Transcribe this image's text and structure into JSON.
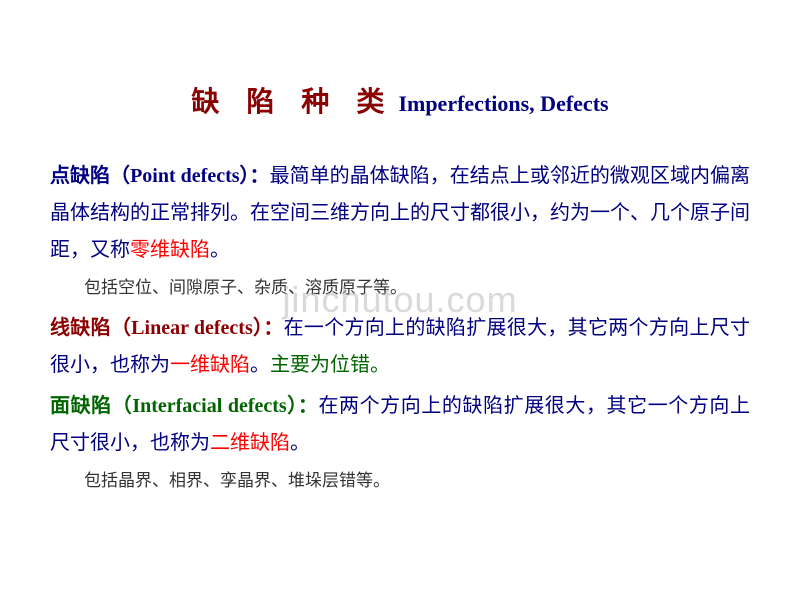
{
  "watermark": "jinchutou.com",
  "title": {
    "cn": "缺 陷 种 类",
    "en": "Imperfections, Defects",
    "cn_color": "#8b0000",
    "en_color": "#000080",
    "cn_fontsize": 28,
    "en_fontsize": 22
  },
  "sections": {
    "point": {
      "heading_cn": "点缺陷（",
      "heading_en": "Point defects",
      "heading_tail": "）：",
      "body1": "最简单的晶体缺陷，在结点上或邻近的微观区域内偏离晶体结构的正常排列。在空间三维方向上的尺寸都很小，约为一个、几个原子间距，又称",
      "highlight": "零维缺陷",
      "period": "。",
      "sub": "包括空位、间隙原子、杂质、溶质原子等。"
    },
    "linear": {
      "heading_cn": "线缺陷（",
      "heading_en": "Linear defects",
      "heading_tail": "）：",
      "body1": "在一个方向上的缺陷扩展很大，其它两个方向上尺寸很小，也称为",
      "highlight": "一维缺陷",
      "period": "。",
      "tail": "主要为位错。"
    },
    "interfacial": {
      "heading_cn": "面缺陷（",
      "heading_en": "Interfacial defects",
      "heading_tail": "）：",
      "body1": "在两个方向上的缺陷扩展很大，其它一个方向上尺寸很小，也称为",
      "highlight": "二维缺陷",
      "period": "。",
      "sub": "包括晶界、相界、孪晶界、堆垛层错等。"
    }
  },
  "colors": {
    "navy": "#000080",
    "darkred": "#8b0000",
    "red": "#ff0000",
    "green": "#006400",
    "purple": "#663399",
    "black": "#000000",
    "background": "#ffffff",
    "watermark": "rgba(180,180,180,0.5)"
  },
  "typography": {
    "body_fontsize": 20,
    "sub_fontsize": 17,
    "line_height": 1.85,
    "font_cn": "SimSun",
    "font_en": "Times New Roman"
  }
}
